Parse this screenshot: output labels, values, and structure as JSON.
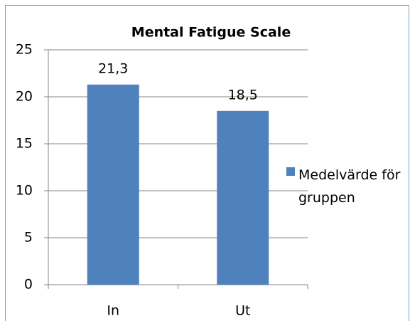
{
  "chart_data": {
    "type": "bar",
    "title": "Mental Fatigue Scale",
    "categories": [
      "In",
      "Ut"
    ],
    "series": [
      {
        "name": "Medelvärde för gruppen",
        "color": "#4f81bd",
        "values": [
          21.3,
          18.5
        ],
        "value_labels": [
          "21,3",
          "18,5"
        ]
      }
    ],
    "ylim": [
      0,
      25
    ],
    "yticks": [
      0,
      5,
      10,
      15,
      20,
      25
    ],
    "grid": true,
    "legend": "right"
  }
}
